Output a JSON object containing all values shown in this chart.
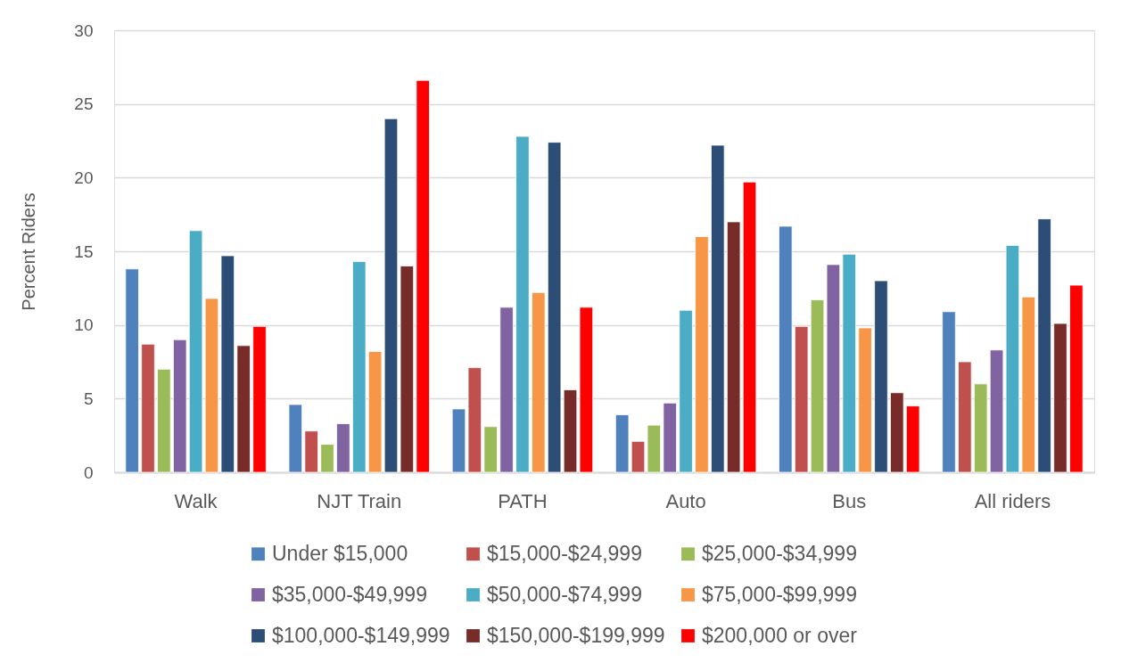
{
  "chart_data": {
    "type": "bar",
    "ylabel": "Percent Riders",
    "categories": [
      "Walk",
      "NJT Train",
      "PATH",
      "Auto",
      "Bus",
      "All riders"
    ],
    "series": [
      {
        "name": "Under $15,000",
        "color": "#4f81bd",
        "values": [
          13.8,
          4.6,
          4.3,
          3.9,
          16.7,
          10.9
        ]
      },
      {
        "name": "$15,000-$24,999",
        "color": "#c0504d",
        "values": [
          8.7,
          2.8,
          7.1,
          2.1,
          9.9,
          7.5
        ]
      },
      {
        "name": "$25,000-$34,999",
        "color": "#9bbb59",
        "values": [
          7.0,
          1.9,
          3.1,
          3.2,
          11.7,
          6.0
        ]
      },
      {
        "name": "$35,000-$49,999",
        "color": "#8064a2",
        "values": [
          9.0,
          3.3,
          11.2,
          4.7,
          14.1,
          8.3
        ]
      },
      {
        "name": "$50,000-$74,999",
        "color": "#4bacc6",
        "values": [
          16.4,
          14.3,
          22.8,
          11.0,
          14.8,
          15.4
        ]
      },
      {
        "name": "$75,000-$99,999",
        "color": "#f79646",
        "values": [
          11.8,
          8.2,
          12.2,
          16.0,
          9.8,
          11.9
        ]
      },
      {
        "name": "$100,000-$149,999",
        "color": "#2c4d75",
        "values": [
          14.7,
          24.0,
          22.4,
          22.2,
          13.0,
          17.2
        ]
      },
      {
        "name": "$150,000-$199,999",
        "color": "#772c2a",
        "values": [
          8.6,
          14.0,
          5.6,
          17.0,
          5.4,
          10.1
        ]
      },
      {
        "name": "$200,000 or over",
        "color": "#ff0000",
        "values": [
          9.9,
          26.6,
          11.2,
          19.7,
          4.5,
          12.7
        ]
      }
    ],
    "ylim": [
      0,
      30
    ],
    "yticks": [
      0,
      5,
      10,
      15,
      20,
      25,
      30
    ],
    "grid": "y",
    "legend": "bottom"
  }
}
